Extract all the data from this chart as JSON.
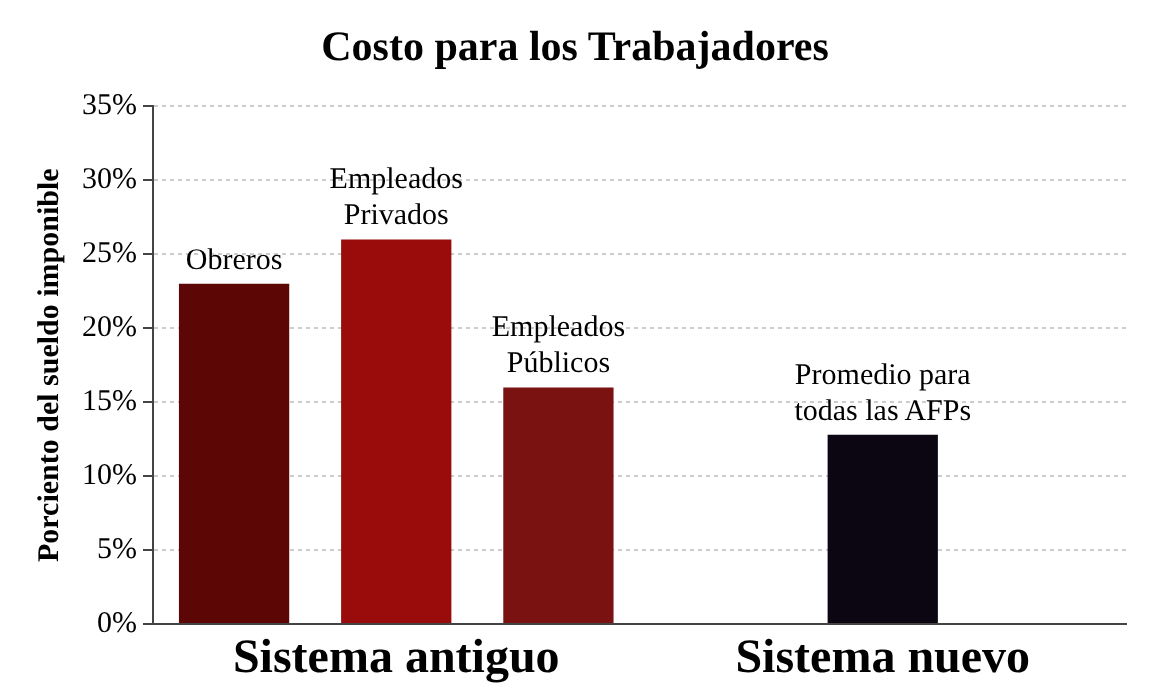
{
  "chart_data": {
    "type": "bar",
    "title": "Costo para los Trabajadores",
    "ylabel": "Porciento del sueldo imponible",
    "categories": [
      "Obreros",
      "Empleados Privados",
      "Empleados Públicos",
      null,
      "Promedio para todas las AFPs",
      null
    ],
    "values": [
      23,
      26,
      16,
      null,
      12.8,
      null
    ],
    "colors": [
      "#5c0606",
      "#9a0b0b",
      "#7a1212",
      null,
      "#0c0612",
      null
    ],
    "ylim": [
      0,
      35
    ],
    "yticks": [
      {
        "value": 0,
        "label": "0%"
      },
      {
        "value": 5,
        "label": "5%"
      },
      {
        "value": 10,
        "label": "10%"
      },
      {
        "value": 15,
        "label": "15%"
      },
      {
        "value": 20,
        "label": "20%"
      },
      {
        "value": 25,
        "label": "25%"
      },
      {
        "value": 30,
        "label": "30%"
      },
      {
        "value": 35,
        "label": "35%"
      }
    ],
    "grid": "y",
    "legend": false,
    "annotations": [
      "Sistema antiguo",
      "Sistema nuevo"
    ]
  }
}
